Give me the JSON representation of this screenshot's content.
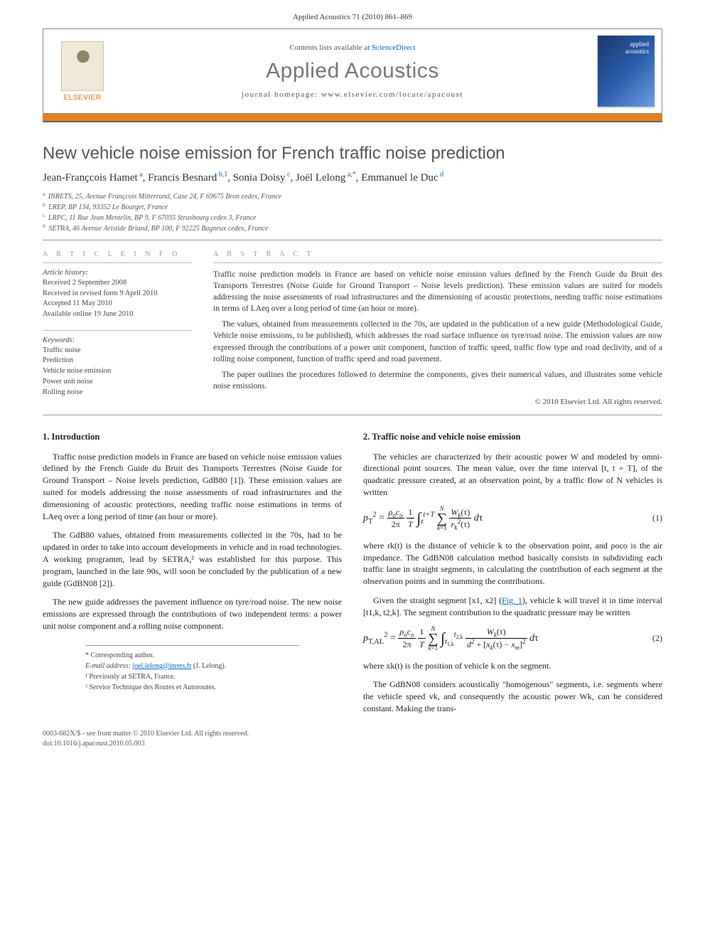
{
  "header": {
    "citation": "Applied Acoustics 71 (2010) 861–869"
  },
  "banner": {
    "contents_prefix": "Contents lists available at ",
    "contents_link": "ScienceDirect",
    "journal_title": "Applied Acoustics",
    "homepage_prefix": "journal homepage: ",
    "homepage_url": "www.elsevier.com/locate/apacoust",
    "publisher": "ELSEVIER",
    "cover_text_line1": "applied",
    "cover_text_line2": "acoustics"
  },
  "article": {
    "title": "New vehicle noise emission for French traffic noise prediction",
    "authors_html": "Jean-Françcois Hamet<sup> a</sup>, Francis Besnard<sup> b,1</sup>, Sonia Doisy<sup> c</sup>, Joël Lelong<sup> a,*</sup>, Emmanuel le Duc<sup> d</sup>",
    "affiliations": [
      {
        "sup": "a",
        "text": "INRETS, 25, Avenue Françcois Mitterrand, Case 24, F 69675 Bron cedex, France"
      },
      {
        "sup": "b",
        "text": "LREP, BP 134, 93352 Le Bourget, France"
      },
      {
        "sup": "c",
        "text": "LRPC, 11 Rue Jean Mentelin, BP 9, F 67035 Strasbourg cedex 3, France"
      },
      {
        "sup": "d",
        "text": "SETRA, 46 Avenue Aristide Briand, BP 100, F 92225 Bagneux cedex, France"
      }
    ]
  },
  "info": {
    "heading_info": "A R T I C L E   I N F O",
    "heading_abstract": "A B S T R A C T",
    "history_label": "Article history:",
    "history": [
      "Received 2 September 2008",
      "Received in revised form 9 April 2010",
      "Accepted 11 May 2010",
      "Available online 19 June 2010"
    ],
    "keywords_label": "Keywords:",
    "keywords": [
      "Traffic noise",
      "Prediction",
      "Vehicle noise emission",
      "Power unit noise",
      "Rolling noise"
    ]
  },
  "abstract": {
    "p1": "Traffic noise prediction models in France are based on vehicle noise emission values defined by the French Guide du Bruit des Transports Terrestres (Noise Guide for Ground Transport – Noise levels prediction). These emission values are suited for models addressing the noise assessments of road infrastructures and the dimensioning of acoustic protections, needing traffic noise estimations in terms of LAeq over a long period of time (an hour or more).",
    "p2": "The values, obtained from measurements collected in the 70s, are updated in the publication of a new guide (Methodological Guide, Vehicle noise emissions, to be published), which addresses the road surface influence on tyre/road noise. The emission values are now expressed through the contributions of a power unit component, function of traffic speed, traffic flow type and road declivity, and of a rolling noise component, function of traffic speed and road pavement.",
    "p3": "The paper outlines the procedures followed to determine the components, gives their numerical values, and illustrates some vehicle noise emissions.",
    "copyright": "© 2010 Elsevier Ltd. All rights reserved."
  },
  "body": {
    "sec1_heading": "1. Introduction",
    "sec1_p1": "Traffic noise prediction models in France are based on vehicle noise emission values defined by the French Guide du Bruit des Transports Terrestres (Noise Guide for Ground Transport – Noise levels prediction, GdB80 [1]). These emission values are suited for models addressing the noise assessments of road infrastructures and the dimensioning of acoustic protections, needing traffic noise estimations in terms of LAeq over a long period of time (an hour or more).",
    "sec1_p2": "The GdB80 values, obtained from measurements collected in the 70s, had to be updated in order to take into account developments in vehicle and in road technologies. A working programm, lead by SETRA,² was established for this purpose. This program, launched in the late 90s, will soon be concluded by the publication of a new guide (GdBN08 [2]).",
    "sec1_p3": "The new guide addresses the pavement influence on tyre/road noise. The new noise emissions are expressed through the contributions of two independent terms: a power unit noise component and a rolling noise component.",
    "sec2_heading": "2. Traffic noise and vehicle noise emission",
    "sec2_p1": "The vehicles are characterized by their acoustic power W and modeled by omni-directional point sources. The mean value, over the time interval [t, t + T], of the quadratic pressure created, at an observation point, by a traffic flow of N vehicles is written",
    "sec2_p2": "where rk(t) is the distance of vehicle k to the observation point, and ρoco is the air impedance. The GdBN08 calculation method basically consists in subdividing each traffic lane in straight segments, in calculating the contribution of each segment at the observation points and in summing the contributions.",
    "sec2_p3a": "Given the straight segment [x1, x2] (",
    "sec2_p3_link": "Fig. 1",
    "sec2_p3b": "), vehicle k will travel it in time interval [t1,k, t2,k]. The segment contribution to the quadratic pressure may be written",
    "sec2_p4": "where xk(t) is the position of vehicle k on the segment.",
    "sec2_p5": "The GdBN08 considers acoustically \"homogenous\" segments, i.e. segments where the vehicle speed vk, and consequently the acoustic power Wk, can be considered constant. Making the trans-",
    "eq1_num": "(1)",
    "eq2_num": "(2)"
  },
  "footer": {
    "corr": "* Corresponding author.",
    "email_label": "E-mail address: ",
    "email": "joel.lelong@inrets.fr",
    "email_name": " (J. Lelong).",
    "note1": "¹ Previously at SETRA, France.",
    "note2": "² Service Technique des Routes et Autoroutes.",
    "front_matter": "0003-682X/$ - see front matter © 2010 Elsevier Ltd. All rights reserved.",
    "doi": "doi:10.1016/j.apacoust.2010.05.003"
  },
  "colors": {
    "orange_bar": "#e08020",
    "link": "#0066cc",
    "title_gray": "#555555",
    "journal_gray": "#777777",
    "text": "#333333"
  }
}
